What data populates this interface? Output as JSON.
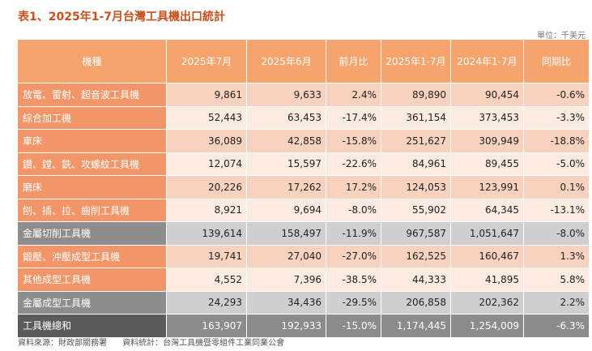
{
  "title": "表1、2025年1-7月台灣工具機出口統計",
  "unit": "單位：千美元",
  "table": {
    "headers": [
      "機種",
      "2025年7月",
      "2025年6月",
      "前月比",
      "2025年1-7月",
      "2024年1-7月",
      "同期比"
    ],
    "rows": [
      {
        "type": "a",
        "cells": [
          "放電、雷射、超音波工具機",
          "9,861",
          "9,633",
          "2.4%",
          "89,890",
          "90,454",
          "-0.6%"
        ]
      },
      {
        "type": "b",
        "cells": [
          "綜合加工機",
          "52,443",
          "63,453",
          "-17.4%",
          "361,154",
          "373,453",
          "-3.3%"
        ]
      },
      {
        "type": "a",
        "cells": [
          "車床",
          "36,089",
          "42,858",
          "-15.8%",
          "251,627",
          "309,949",
          "-18.8%"
        ]
      },
      {
        "type": "b",
        "cells": [
          "鑽、鏜、銑、攻螺紋工具機",
          "12,074",
          "15,597",
          "-22.6%",
          "84,961",
          "89,455",
          "-5.0%"
        ]
      },
      {
        "type": "a",
        "cells": [
          "磨床",
          "20,226",
          "17,262",
          "17.2%",
          "124,053",
          "123,991",
          "0.1%"
        ]
      },
      {
        "type": "b",
        "cells": [
          "刨、插、拉、齒削工具機",
          "8,921",
          "9,694",
          "-8.0%",
          "55,902",
          "64,345",
          "-13.1%"
        ]
      },
      {
        "type": "sub",
        "cells": [
          "金屬切削工具機",
          "139,614",
          "158,497",
          "-11.9%",
          "967,587",
          "1,051,647",
          "-8.0%"
        ]
      },
      {
        "type": "a",
        "cells": [
          "鍛壓、沖壓成型工具機",
          "19,741",
          "27,040",
          "-27.0%",
          "162,525",
          "160,467",
          "1.3%"
        ]
      },
      {
        "type": "b",
        "cells": [
          "其他成型工具機",
          "4,552",
          "7,396",
          "-38.5%",
          "44,333",
          "41,895",
          "5.8%"
        ]
      },
      {
        "type": "sub",
        "cells": [
          "金屬成型工具機",
          "24,293",
          "34,436",
          "-29.5%",
          "206,858",
          "202,362",
          "2.2%"
        ]
      },
      {
        "type": "total",
        "cells": [
          "工具機總和",
          "163,907",
          "192,933",
          "-15.0%",
          "1,174,445",
          "1,254,009",
          "-6.3%"
        ]
      }
    ]
  },
  "source": {
    "data_source": "資料來源：財政部關務署",
    "compiled_by": "資料統計：台灣工具機暨零組件工業同業公會"
  }
}
